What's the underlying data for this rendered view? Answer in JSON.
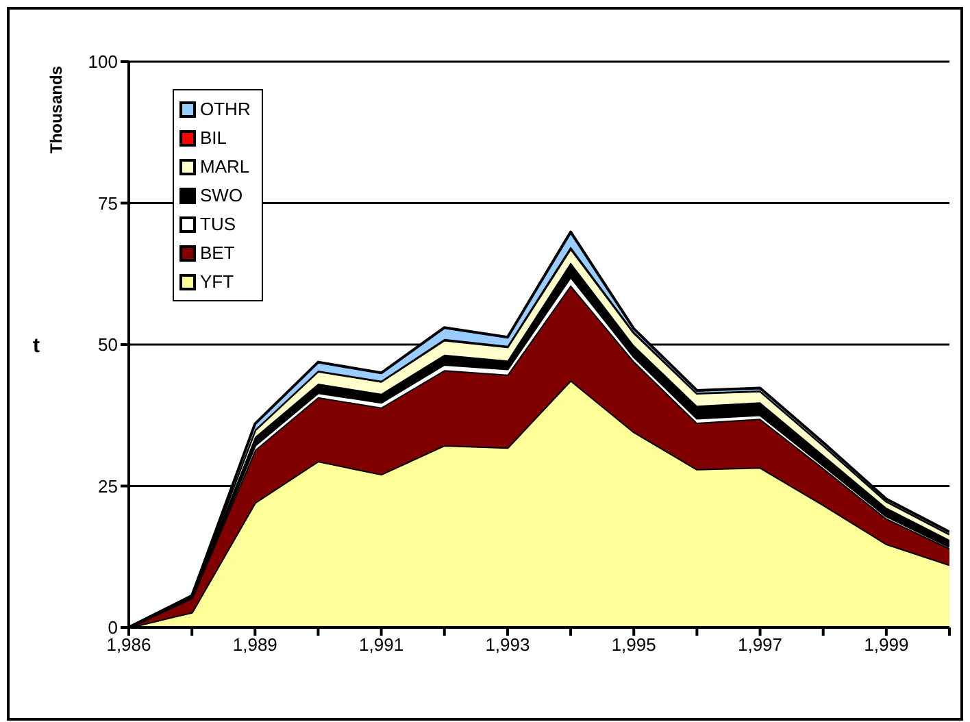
{
  "chart_data": {
    "type": "area",
    "stacked": true,
    "ylabel": "t",
    "annotations": [
      "Thousands"
    ],
    "categories": [
      "1,986",
      null,
      "1,989",
      null,
      "1,991",
      null,
      "1,993",
      null,
      "1,995",
      null,
      "1,997",
      null,
      "1,999",
      null
    ],
    "series": [
      {
        "name": "YFT",
        "color": "#ffff99",
        "values": [
          0,
          2.7,
          22.1,
          29.4,
          27.1,
          32.2,
          31.8,
          43.7,
          34.6,
          28.0,
          28.3,
          21.7,
          14.8,
          11.1
        ]
      },
      {
        "name": "BET",
        "color": "#800000",
        "values": [
          0,
          2.5,
          9.3,
          11.3,
          11.8,
          13.3,
          12.9,
          16.8,
          12.5,
          8.2,
          8.6,
          6.5,
          4.5,
          2.9
        ]
      },
      {
        "name": "TUS",
        "color": "#ffffff",
        "values": [
          0,
          0.1,
          0.8,
          0.8,
          0.9,
          1.0,
          1.0,
          1.5,
          0.8,
          0.8,
          0.7,
          0.5,
          0.4,
          0.3
        ]
      },
      {
        "name": "SWO",
        "color": "#000000",
        "values": [
          0,
          0.2,
          1.5,
          1.6,
          1.5,
          1.7,
          1.5,
          2.5,
          2.0,
          2.2,
          2.2,
          1.8,
          1.5,
          1.2
        ]
      },
      {
        "name": "MARL",
        "color": "#ffffcc",
        "values": [
          0,
          0.1,
          1.2,
          2.2,
          2.2,
          2.6,
          2.4,
          2.5,
          2.2,
          2.2,
          2.0,
          1.7,
          1.1,
          1.0
        ]
      },
      {
        "name": "BIL",
        "color": "#ff0000",
        "values": [
          0,
          0,
          0.1,
          0.1,
          0.1,
          0.2,
          0.2,
          0.3,
          0.2,
          0.1,
          0.1,
          0.1,
          0.1,
          0.1
        ]
      },
      {
        "name": "OTHR",
        "color": "#99ccff",
        "values": [
          0,
          0,
          1.0,
          1.5,
          1.4,
          2.0,
          1.5,
          2.6,
          0.5,
          0.4,
          0.4,
          0.4,
          0.3,
          0.3
        ]
      }
    ],
    "ylim": [
      0,
      100
    ],
    "yticks": [
      0,
      25,
      50,
      75,
      100
    ],
    "grid": "y",
    "legend": "top left"
  }
}
